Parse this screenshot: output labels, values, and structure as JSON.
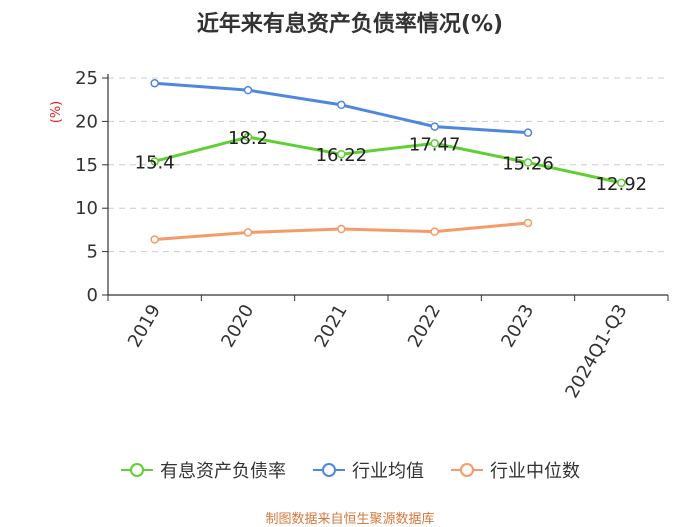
{
  "title": "近年来有息资产负债率情况(%)",
  "source": "制图数据来自恒生聚源数据库",
  "colors": {
    "green": "#5fcf32",
    "blue": "#4f86e0",
    "orange": "#f59a68",
    "unit": "#e02020",
    "grid": "#cccccc"
  },
  "chart_data": {
    "type": "line",
    "title": "近年来有息资产负债率情况(%)",
    "ylabel": "(%)",
    "xlabel": "",
    "ylim": [
      0,
      25
    ],
    "yticks": [
      0,
      5,
      10,
      15,
      20,
      25
    ],
    "categories": [
      "2019",
      "2020",
      "2021",
      "2022",
      "2023",
      "2024Q1-Q3"
    ],
    "legend_position": "bottom",
    "grid": true,
    "series": [
      {
        "name": "有息资产负债率",
        "color": "#5fcf32",
        "values": [
          15.4,
          18.2,
          16.22,
          17.47,
          15.26,
          12.92
        ],
        "labels": [
          "15.4",
          "18.2",
          "16.22",
          "17.47",
          "15.26",
          "12.92"
        ]
      },
      {
        "name": "行业均值",
        "color": "#4f86e0",
        "values": [
          24.4,
          23.6,
          21.9,
          19.4,
          18.7,
          null
        ]
      },
      {
        "name": "行业中位数",
        "color": "#f59a68",
        "values": [
          6.4,
          7.2,
          7.6,
          7.3,
          8.3,
          null
        ]
      }
    ]
  }
}
